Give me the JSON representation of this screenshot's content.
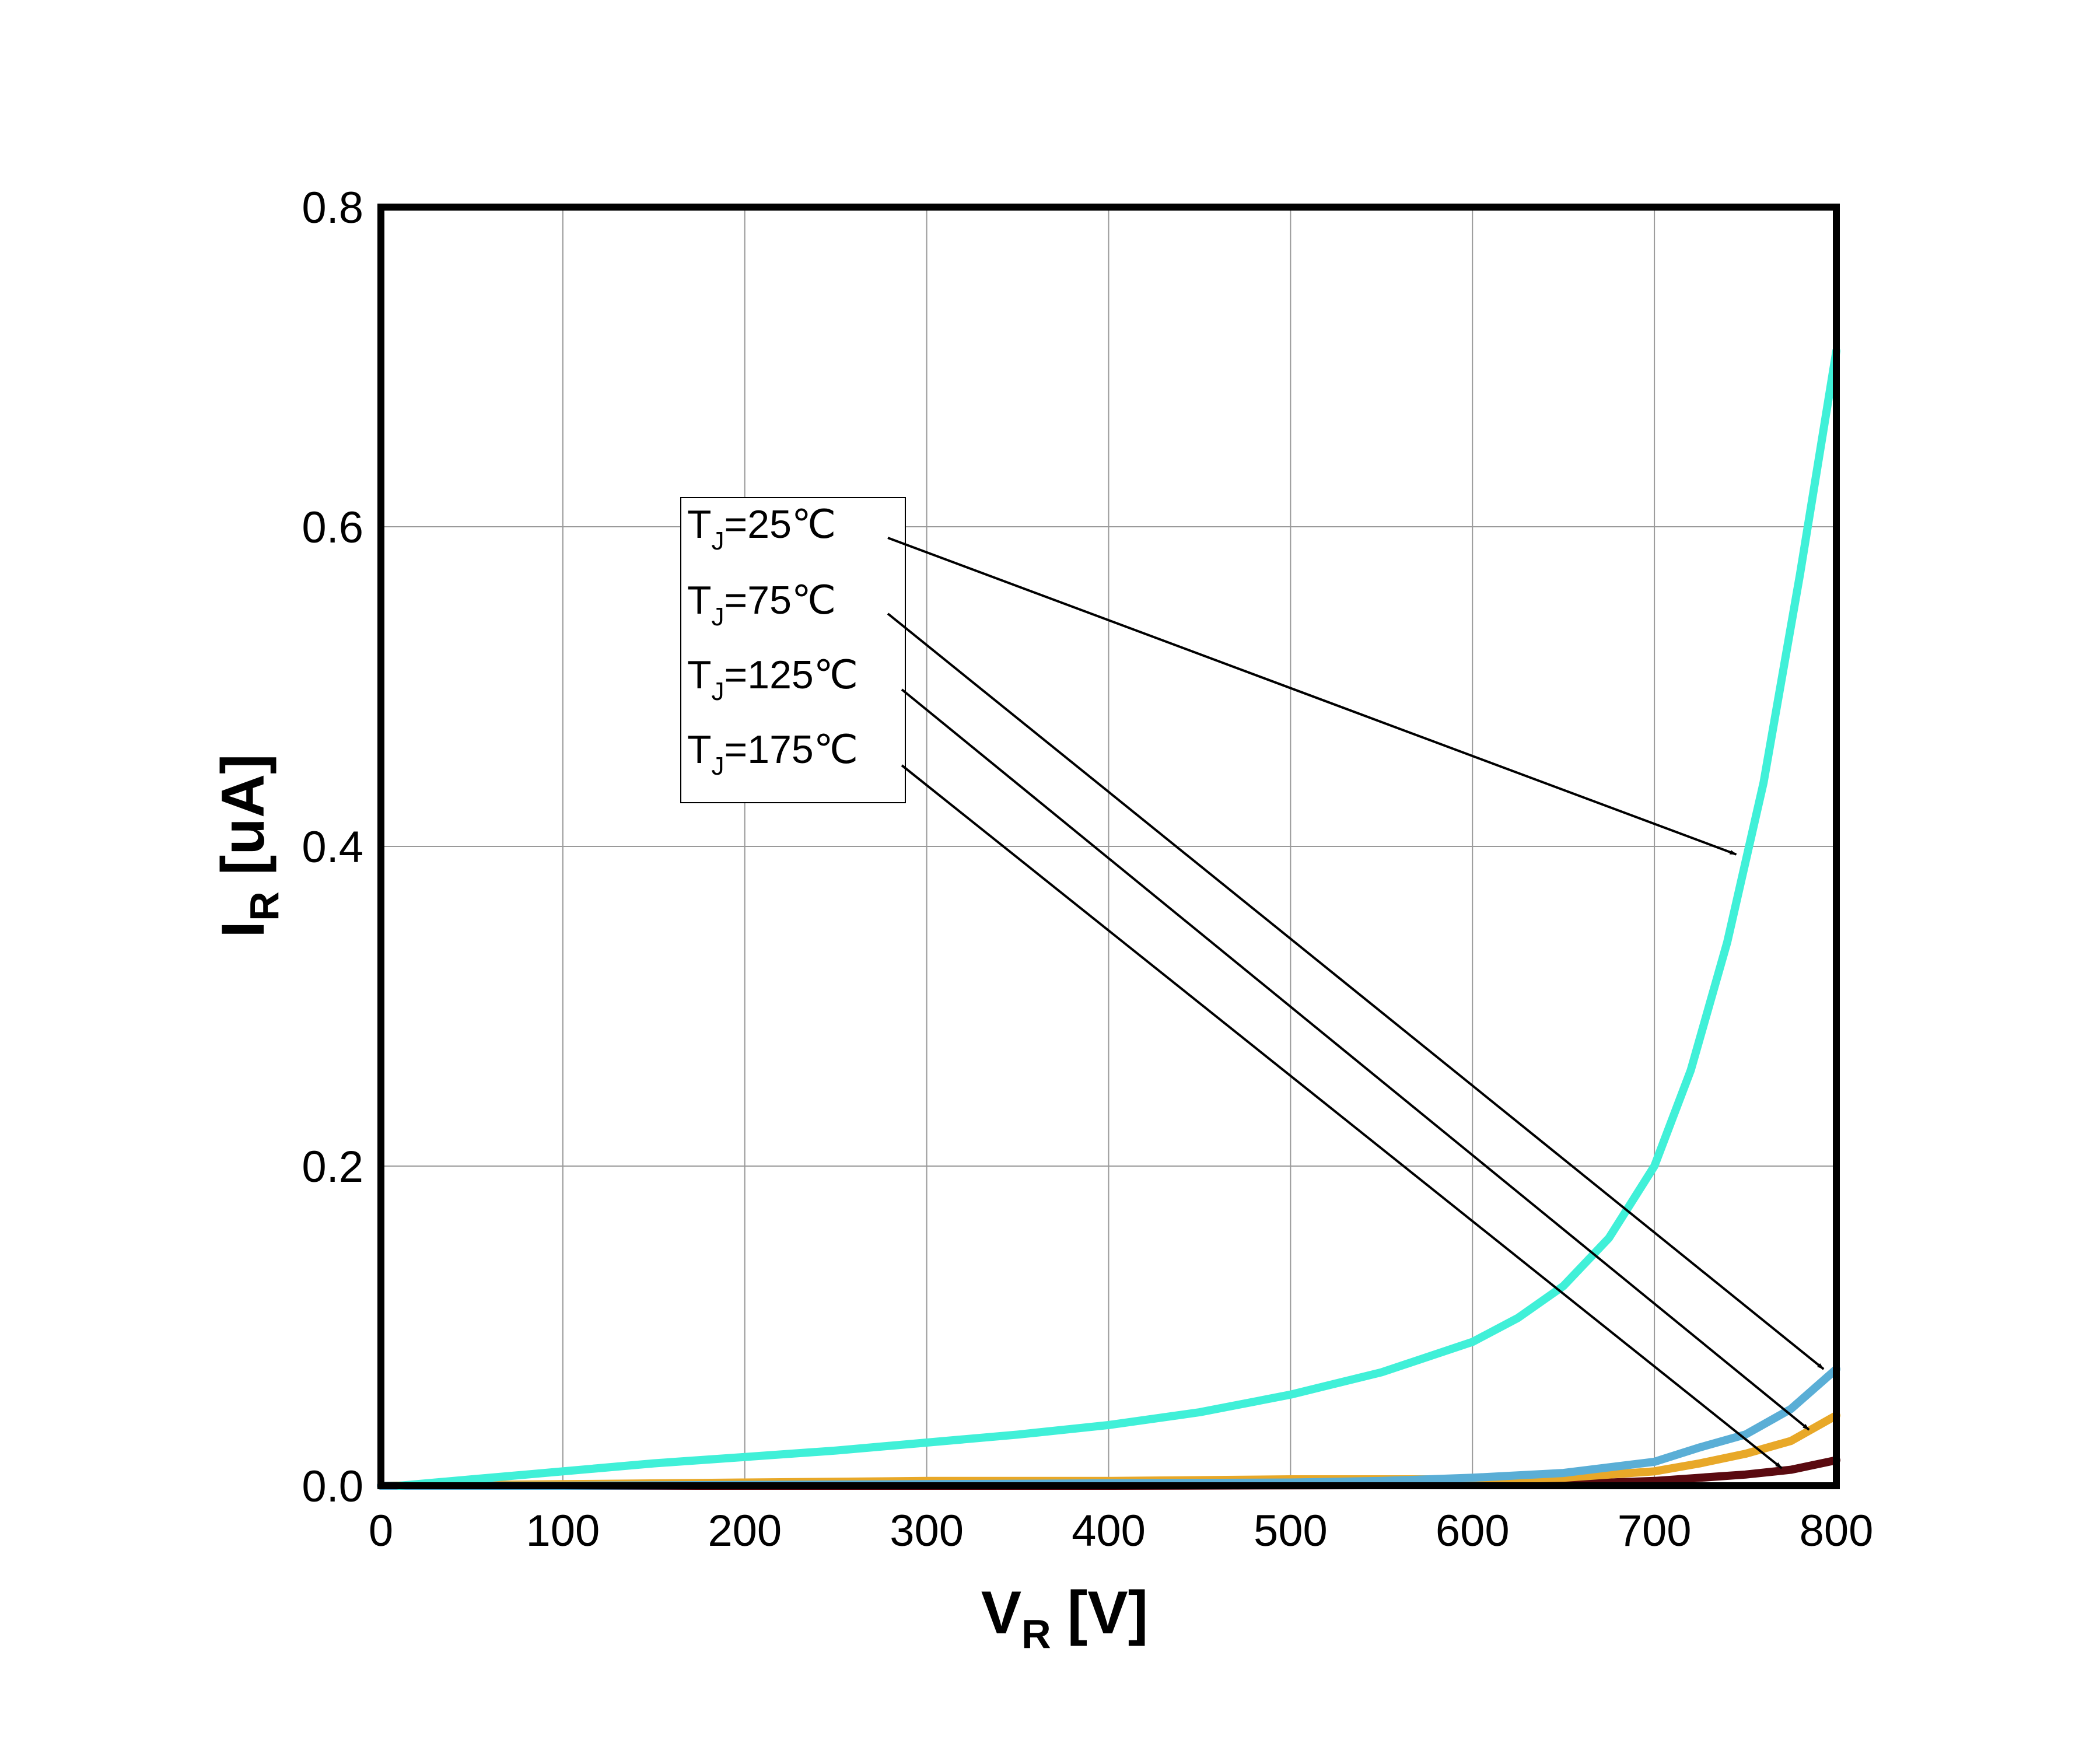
{
  "chart_data": {
    "type": "line",
    "title": "",
    "xlabel": {
      "main": "V",
      "sub": "R",
      "unit": "[V]"
    },
    "ylabel": {
      "main": "I",
      "sub": "R",
      "unit": "[uA]"
    },
    "xlim": [
      0,
      800
    ],
    "ylim": [
      0,
      0.8
    ],
    "xticks": [
      0,
      100,
      200,
      300,
      400,
      500,
      600,
      700,
      800
    ],
    "yticks": [
      0,
      0.2,
      0.4,
      0.6,
      0.8
    ],
    "xtick_labels": [
      "0",
      "100",
      "200",
      "300",
      "400",
      "500",
      "600",
      "700",
      "800"
    ],
    "ytick_labels": [
      "0.0",
      "0.2",
      "0.4",
      "0.6",
      "0.8"
    ],
    "grid": true,
    "series": [
      {
        "name": "TJ=25℃",
        "color": "#40f0d8",
        "x": [
          10,
          50,
          100,
          150,
          200,
          250,
          300,
          350,
          400,
          450,
          500,
          550,
          600,
          625,
          650,
          675,
          700,
          720,
          740,
          760,
          780,
          800
        ],
        "y": [
          0.0,
          0.004,
          0.009,
          0.014,
          0.018,
          0.022,
          0.027,
          0.032,
          0.038,
          0.046,
          0.057,
          0.071,
          0.09,
          0.105,
          0.125,
          0.155,
          0.2,
          0.26,
          0.34,
          0.44,
          0.57,
          0.71
        ]
      },
      {
        "name": "TJ=75℃",
        "color": "#5aaed6",
        "x": [
          0,
          100,
          200,
          300,
          400,
          500,
          550,
          600,
          650,
          700,
          725,
          750,
          775,
          800
        ],
        "y": [
          0.0,
          0.0,
          0.0005,
          0.001,
          0.0015,
          0.002,
          0.003,
          0.005,
          0.008,
          0.015,
          0.024,
          0.032,
          0.048,
          0.073
        ]
      },
      {
        "name": "TJ=125℃",
        "color": "#e8a828",
        "x": [
          0,
          100,
          200,
          300,
          400,
          500,
          550,
          600,
          650,
          700,
          725,
          750,
          775,
          800
        ],
        "y": [
          0.0,
          0.001,
          0.002,
          0.003,
          0.003,
          0.004,
          0.004,
          0.004,
          0.005,
          0.009,
          0.014,
          0.02,
          0.028,
          0.044
        ]
      },
      {
        "name": "TJ=175℃",
        "color": "#5a0a10",
        "x": [
          0,
          200,
          400,
          600,
          650,
          700,
          725,
          750,
          775,
          800
        ],
        "y": [
          0.0,
          0.0,
          0.0,
          0.0005,
          0.001,
          0.003,
          0.005,
          0.007,
          0.01,
          0.016
        ]
      }
    ],
    "legend": {
      "placement": "upper-left",
      "entries": [
        {
          "main": "T",
          "sub": "J",
          "rest": "=25℃"
        },
        {
          "main": "T",
          "sub": "J",
          "rest": "=75℃"
        },
        {
          "main": "T",
          "sub": "J",
          "rest": "=125℃"
        },
        {
          "main": "T",
          "sub": "J",
          "rest": "=175℃"
        }
      ]
    },
    "annotations": [
      {
        "series": "TJ=25℃",
        "arrow_target": [
          745,
          0.395
        ]
      },
      {
        "series": "TJ=75℃",
        "arrow_target": [
          793,
          0.073
        ]
      },
      {
        "series": "TJ=125℃",
        "arrow_target": [
          785,
          0.035
        ]
      },
      {
        "series": "TJ=175℃",
        "arrow_target": [
          770,
          0.011
        ]
      }
    ]
  }
}
